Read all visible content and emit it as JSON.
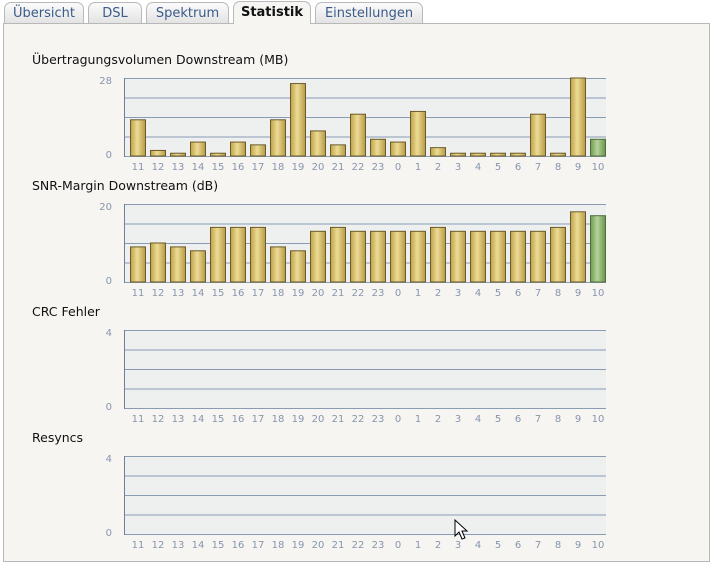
{
  "tabs": [
    {
      "label": "Übersicht",
      "active": false
    },
    {
      "label": "DSL",
      "active": false
    },
    {
      "label": "Spektrum",
      "active": false
    },
    {
      "label": "Statistik",
      "active": true
    },
    {
      "label": "Einstellungen",
      "active": false
    }
  ],
  "colors": {
    "bar": "#d4bd6a",
    "bar_current": "#8fb56d",
    "plot_background": "#eef0ef",
    "gridline": "#8a9bb4",
    "tick_label": "#8795ad"
  },
  "chart_data": [
    {
      "type": "bar",
      "title": "Übertragungsvolumen Downstream (MB)",
      "categories": [
        "11",
        "12",
        "13",
        "14",
        "15",
        "16",
        "17",
        "18",
        "19",
        "20",
        "21",
        "22",
        "23",
        "0",
        "1",
        "2",
        "3",
        "4",
        "5",
        "6",
        "7",
        "8",
        "9",
        "10"
      ],
      "values": [
        13,
        2,
        1,
        5,
        1,
        5,
        4,
        13,
        26,
        9,
        4,
        15,
        6,
        5,
        16,
        3,
        1,
        1,
        1,
        1,
        15,
        1,
        28,
        6
      ],
      "ylim": [
        0,
        28
      ],
      "yticks": [
        "28",
        "0"
      ],
      "current_index": 23
    },
    {
      "type": "bar",
      "title": "SNR-Margin Downstream (dB)",
      "categories": [
        "11",
        "12",
        "13",
        "14",
        "15",
        "16",
        "17",
        "18",
        "19",
        "20",
        "21",
        "22",
        "23",
        "0",
        "1",
        "2",
        "3",
        "4",
        "5",
        "6",
        "7",
        "8",
        "9",
        "10"
      ],
      "values": [
        9,
        10,
        9,
        8,
        14,
        14,
        14,
        9,
        8,
        13,
        14,
        13,
        13,
        13,
        13,
        14,
        13,
        13,
        13,
        13,
        13,
        14,
        18,
        17
      ],
      "ylim": [
        0,
        20
      ],
      "yticks": [
        "20",
        "0"
      ],
      "current_index": 23
    },
    {
      "type": "bar",
      "title": "CRC Fehler",
      "categories": [
        "11",
        "12",
        "13",
        "14",
        "15",
        "16",
        "17",
        "18",
        "19",
        "20",
        "21",
        "22",
        "23",
        "0",
        "1",
        "2",
        "3",
        "4",
        "5",
        "6",
        "7",
        "8",
        "9",
        "10"
      ],
      "values": [
        0,
        0,
        0,
        0,
        0,
        0,
        0,
        0,
        0,
        0,
        0,
        0,
        0,
        0,
        0,
        0,
        0,
        0,
        0,
        0,
        0,
        0,
        0,
        0
      ],
      "ylim": [
        0,
        4
      ],
      "yticks": [
        "4",
        "0"
      ],
      "current_index": 23
    },
    {
      "type": "bar",
      "title": "Resyncs",
      "categories": [
        "11",
        "12",
        "13",
        "14",
        "15",
        "16",
        "17",
        "18",
        "19",
        "20",
        "21",
        "22",
        "23",
        "0",
        "1",
        "2",
        "3",
        "4",
        "5",
        "6",
        "7",
        "8",
        "9",
        "10"
      ],
      "values": [
        0,
        0,
        0,
        0,
        0,
        0,
        0,
        0,
        0,
        0,
        0,
        0,
        0,
        0,
        0,
        0,
        0,
        0,
        0,
        0,
        0,
        0,
        0,
        0
      ],
      "ylim": [
        0,
        4
      ],
      "yticks": [
        "4",
        "0"
      ],
      "current_index": 23
    }
  ]
}
